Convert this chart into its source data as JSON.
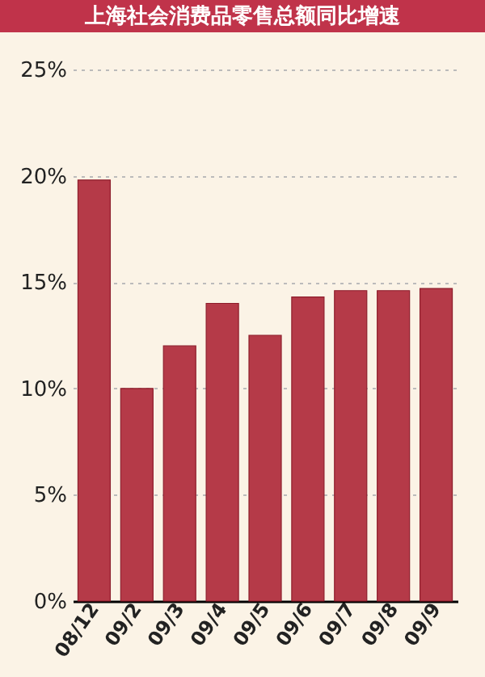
{
  "chart_data": {
    "type": "bar",
    "title": "上海社会消费品零售总额同比增速",
    "categories": [
      "08/12",
      "09/2",
      "09/3",
      "09/4",
      "09/5",
      "09/6",
      "09/7",
      "09/8",
      "09/9"
    ],
    "values": [
      19.8,
      10.0,
      12.0,
      14.0,
      12.5,
      14.3,
      14.6,
      14.6,
      14.7
    ],
    "color": "#b53a48",
    "ylim": [
      0,
      25
    ],
    "yticks": [
      {
        "value": 0,
        "label": "0%"
      },
      {
        "value": 5,
        "label": "5%"
      },
      {
        "value": 10,
        "label": "10%"
      },
      {
        "value": 15,
        "label": "15%"
      },
      {
        "value": 20,
        "label": "20%"
      },
      {
        "value": 25,
        "label": "25%"
      }
    ],
    "grid": "y"
  }
}
